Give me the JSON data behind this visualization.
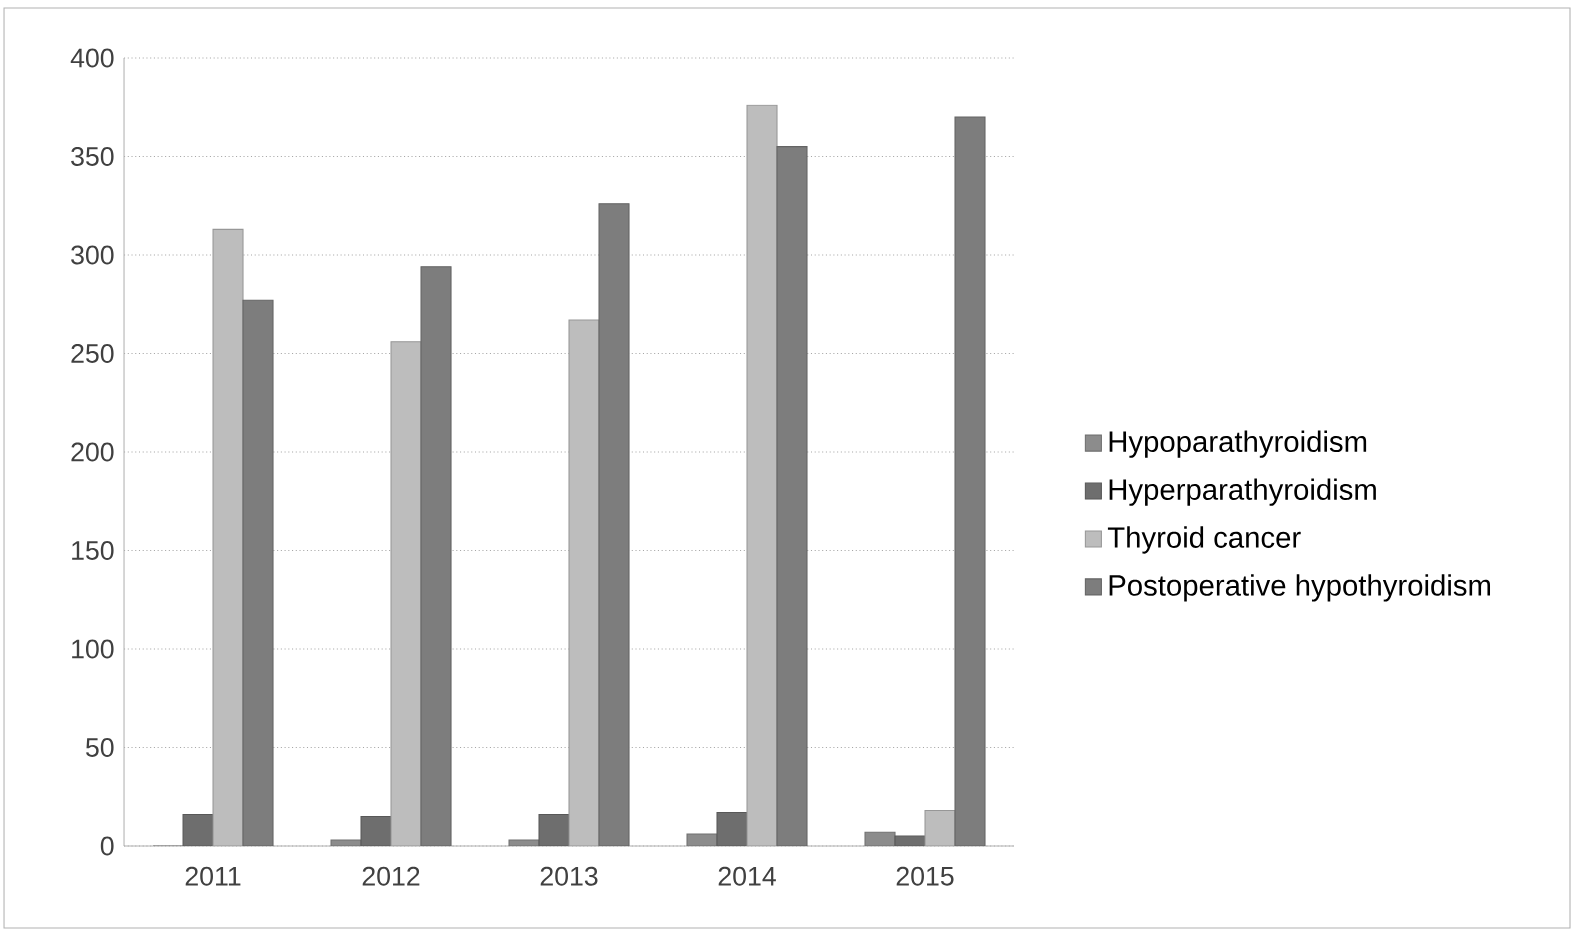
{
  "chart_data": {
    "type": "bar",
    "categories": [
      "2011",
      "2012",
      "2013",
      "2014",
      "2015"
    ],
    "series": [
      {
        "name": "Hypoparathyroidism",
        "color": "#8c8c8c",
        "values": [
          0,
          3,
          3,
          6,
          7
        ]
      },
      {
        "name": "Hyperparathyroidism",
        "color": "#6e6e6e",
        "values": [
          16,
          15,
          16,
          17,
          5
        ]
      },
      {
        "name": "Thyroid cancer",
        "color": "#bdbdbd",
        "values": [
          313,
          256,
          267,
          376,
          18
        ]
      },
      {
        "name": "Postoperative hypothyroidism",
        "color": "#7d7d7d",
        "values": [
          277,
          294,
          326,
          355,
          370
        ]
      }
    ],
    "ylim": [
      0,
      400
    ],
    "yticks": [
      0,
      50,
      100,
      150,
      200,
      250,
      300,
      350,
      400
    ],
    "grid": "y",
    "legend": "right"
  }
}
